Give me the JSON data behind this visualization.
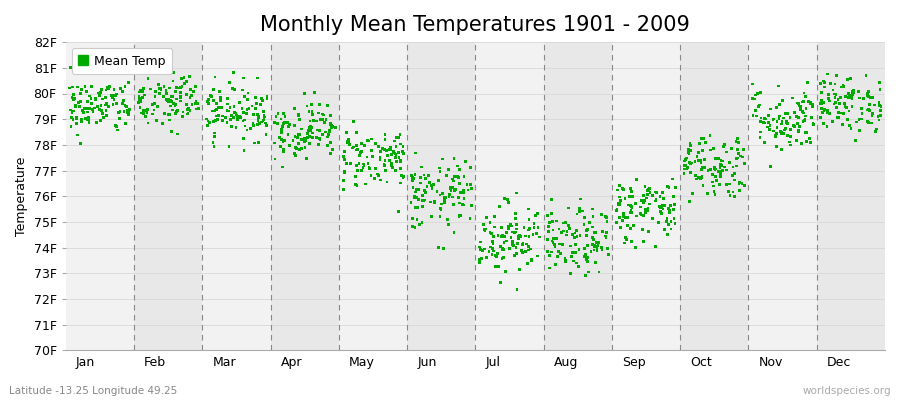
{
  "title": "Monthly Mean Temperatures 1901 - 2009",
  "ylabel": "Temperature",
  "subtitle": "Latitude -13.25 Longitude 49.25",
  "watermark": "worldspecies.org",
  "months": [
    "Jan",
    "Feb",
    "Mar",
    "Apr",
    "May",
    "Jun",
    "Jul",
    "Aug",
    "Sep",
    "Oct",
    "Nov",
    "Dec"
  ],
  "ylim": [
    70,
    82
  ],
  "yticks": [
    70,
    71,
    72,
    73,
    74,
    75,
    76,
    77,
    78,
    79,
    80,
    81,
    82
  ],
  "ytick_labels": [
    "70F",
    "71F",
    "72F",
    "73F",
    "74F",
    "75F",
    "76F",
    "77F",
    "78F",
    "79F",
    "80F",
    "81F",
    "82F"
  ],
  "n_years": 109,
  "start_year": 1901,
  "end_year": 2009,
  "dot_color": "#00AA00",
  "dot_size": 4,
  "bg_color_light": "#f2f2f2",
  "bg_color_dark": "#e8e8e8",
  "mean_temps_F": [
    79.5,
    79.7,
    79.3,
    78.6,
    77.5,
    76.0,
    74.4,
    74.2,
    75.5,
    77.2,
    79.0,
    79.6
  ],
  "std_temps_F": [
    0.55,
    0.6,
    0.55,
    0.55,
    0.6,
    0.7,
    0.7,
    0.65,
    0.65,
    0.65,
    0.65,
    0.55
  ],
  "title_fontsize": 15,
  "label_fontsize": 9,
  "tick_fontsize": 9,
  "legend_label": "Mean Temp",
  "grid_color": "#d8d8d8",
  "vline_color": "#888888"
}
